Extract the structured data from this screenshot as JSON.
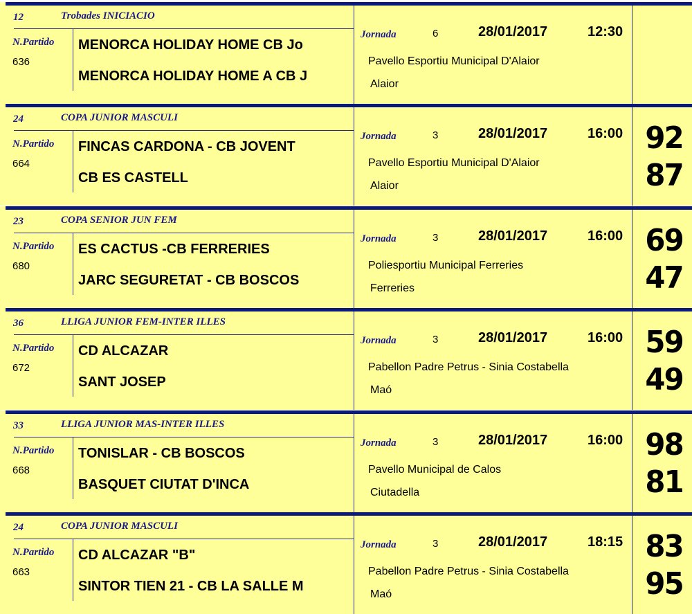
{
  "games": [
    {
      "cat_num": "12",
      "category": "Trobades INICIACIO",
      "np_label": "N.Partido",
      "partido": "636",
      "team1": "MENORCA HOLIDAY HOME CB Jo",
      "team2": "MENORCA HOLIDAY HOME A CB J",
      "jornada_label": "Jornada",
      "jornada": "6",
      "date": "28/01/2017",
      "time": "12:30",
      "venue": "Pavello Esportiu Municipal D'Alaior",
      "city": "Alaior",
      "score1": "",
      "score2": ""
    },
    {
      "cat_num": "24",
      "category": "COPA JUNIOR MASCULI",
      "np_label": "N.Partido",
      "partido": "664",
      "team1": "FINCAS CARDONA - CB JOVENT",
      "team2": "CB ES CASTELL",
      "jornada_label": "Jornada",
      "jornada": "3",
      "date": "28/01/2017",
      "time": "16:00",
      "venue": "Pavello Esportiu Municipal D'Alaior",
      "city": "Alaior",
      "score1": "92",
      "score2": "87"
    },
    {
      "cat_num": "23",
      "category": "COPA SENIOR JUN FEM",
      "np_label": "N.Partido",
      "partido": "680",
      "team1": "ES CACTUS -CB FERRERIES",
      "team2": "JARC SEGURETAT - CB BOSCOS",
      "jornada_label": "Jornada",
      "jornada": "3",
      "date": "28/01/2017",
      "time": "16:00",
      "venue": "Poliesportiu Municipal Ferreries",
      "city": "Ferreries",
      "score1": "69",
      "score2": "47"
    },
    {
      "cat_num": "36",
      "category": "LLIGA JUNIOR FEM-INTER ILLES",
      "np_label": "N.Partido",
      "partido": "672",
      "team1": "CD ALCAZAR",
      "team2": "SANT JOSEP",
      "jornada_label": "Jornada",
      "jornada": "3",
      "date": "28/01/2017",
      "time": "16:00",
      "venue": "Pabellon Padre Petrus - Sinia Costabella",
      "city": "Maó",
      "score1": "59",
      "score2": "49"
    },
    {
      "cat_num": "33",
      "category": "LLIGA JUNIOR MAS-INTER ILLES",
      "np_label": "N.Partido",
      "partido": "668",
      "team1": "TONISLAR - CB BOSCOS",
      "team2": "BASQUET CIUTAT D'INCA",
      "jornada_label": "Jornada",
      "jornada": "3",
      "date": "28/01/2017",
      "time": "16:00",
      "venue": "Pavello Municipal de Calos",
      "city": "Ciutadella",
      "score1": "98",
      "score2": "81"
    },
    {
      "cat_num": "24",
      "category": "COPA JUNIOR MASCULI",
      "np_label": "N.Partido",
      "partido": "663",
      "team1": "CD ALCAZAR \"B\"",
      "team2": "SINTOR TIEN 21 - CB LA SALLE M",
      "jornada_label": "Jornada",
      "jornada": "3",
      "date": "28/01/2017",
      "time": "18:15",
      "venue": "Pabellon Padre Petrus - Sinia Costabella",
      "city": "Maó",
      "score1": "83",
      "score2": "95"
    }
  ]
}
